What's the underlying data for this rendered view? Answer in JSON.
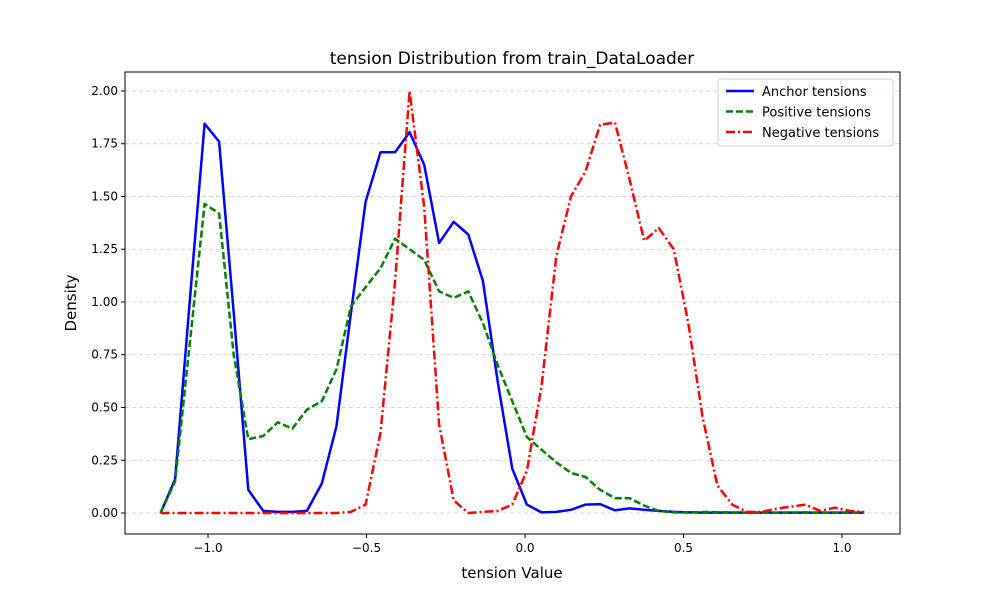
{
  "chart_data": {
    "type": "line",
    "title": "tension Distribution from train_DataLoader",
    "xlabel": "tension Value",
    "ylabel": "Density",
    "xlim": [
      -1.262,
      1.183
    ],
    "ylim": [
      -0.0995,
      2.09
    ],
    "xticks": [
      -1.0,
      -0.5,
      0.0,
      0.5,
      1.0
    ],
    "xtick_labels": [
      "−1.0",
      "−0.5",
      "0.0",
      "0.5",
      "1.0"
    ],
    "yticks": [
      0,
      0.25,
      0.5,
      0.75,
      1.0,
      1.25,
      1.5,
      1.75,
      2.0
    ],
    "ytick_labels": [
      "0.00",
      "0.25",
      "0.50",
      "0.75",
      "1.00",
      "1.25",
      "1.50",
      "1.75",
      "2.00"
    ],
    "grid": "y-dashed",
    "legend_position": "top-right",
    "x": [
      -1.15,
      -1.104,
      -1.058,
      -1.011,
      -0.965,
      -0.919,
      -0.873,
      -0.826,
      -0.78,
      -0.734,
      -0.688,
      -0.641,
      -0.595,
      -0.549,
      -0.503,
      -0.456,
      -0.41,
      -0.364,
      -0.318,
      -0.271,
      -0.225,
      -0.179,
      -0.133,
      -0.086,
      -0.04,
      0.006,
      0.052,
      0.099,
      0.145,
      0.191,
      0.237,
      0.284,
      0.33,
      0.376,
      0.422,
      0.469,
      0.515,
      0.561,
      0.607,
      0.654,
      0.7,
      0.746,
      0.792,
      0.839,
      0.885,
      0.931,
      0.977,
      1.024,
      1.07
    ],
    "series": [
      {
        "name": "Anchor tensions",
        "color": "#0000ff",
        "style": "solid",
        "values": [
          0,
          0.16,
          1.0,
          1.845,
          1.76,
          0.95,
          0.11,
          0.01,
          0.005,
          0.005,
          0.01,
          0.14,
          0.41,
          0.95,
          1.475,
          1.71,
          1.71,
          1.805,
          1.65,
          1.28,
          1.38,
          1.32,
          1.1,
          0.62,
          0.21,
          0.04,
          0.003,
          0.005,
          0.015,
          0.04,
          0.042,
          0.013,
          0.022,
          0.015,
          0.01,
          0.005,
          0.003,
          0.002,
          0.002,
          0.002,
          0.002,
          0.002,
          0.002,
          0.002,
          0.002,
          0.002,
          0.002,
          0.002,
          0.002
        ]
      },
      {
        "name": "Positive tensions",
        "color": "#008000",
        "style": "dashed",
        "values": [
          0,
          0.15,
          0.8,
          1.465,
          1.42,
          0.75,
          0.35,
          0.365,
          0.43,
          0.4,
          0.49,
          0.53,
          0.68,
          0.98,
          1.07,
          1.16,
          1.3,
          1.25,
          1.2,
          1.05,
          1.02,
          1.05,
          0.9,
          0.7,
          0.53,
          0.36,
          0.3,
          0.24,
          0.19,
          0.17,
          0.11,
          0.07,
          0.07,
          0.035,
          0.01,
          0.003,
          0.002,
          0.005,
          0.004,
          0.003,
          0.002,
          0.003,
          0.002,
          0.002,
          0.003,
          0.002,
          0.002,
          0.002,
          0.002
        ]
      },
      {
        "name": "Negative tensions",
        "color": "#ff0000",
        "style": "dashdot",
        "values": [
          0,
          0,
          0,
          0,
          0,
          0,
          0,
          0,
          0,
          0,
          0,
          0,
          0,
          0.005,
          0.04,
          0.38,
          1.1,
          2.0,
          1.45,
          0.42,
          0.06,
          0.0,
          0.005,
          0.01,
          0.04,
          0.2,
          0.6,
          1.22,
          1.5,
          1.62,
          1.84,
          1.85,
          1.58,
          1.29,
          1.35,
          1.25,
          0.9,
          0.45,
          0.13,
          0.04,
          0.005,
          0.005,
          0.02,
          0.03,
          0.04,
          0.01,
          0.025,
          0.01,
          0.005
        ]
      }
    ]
  }
}
